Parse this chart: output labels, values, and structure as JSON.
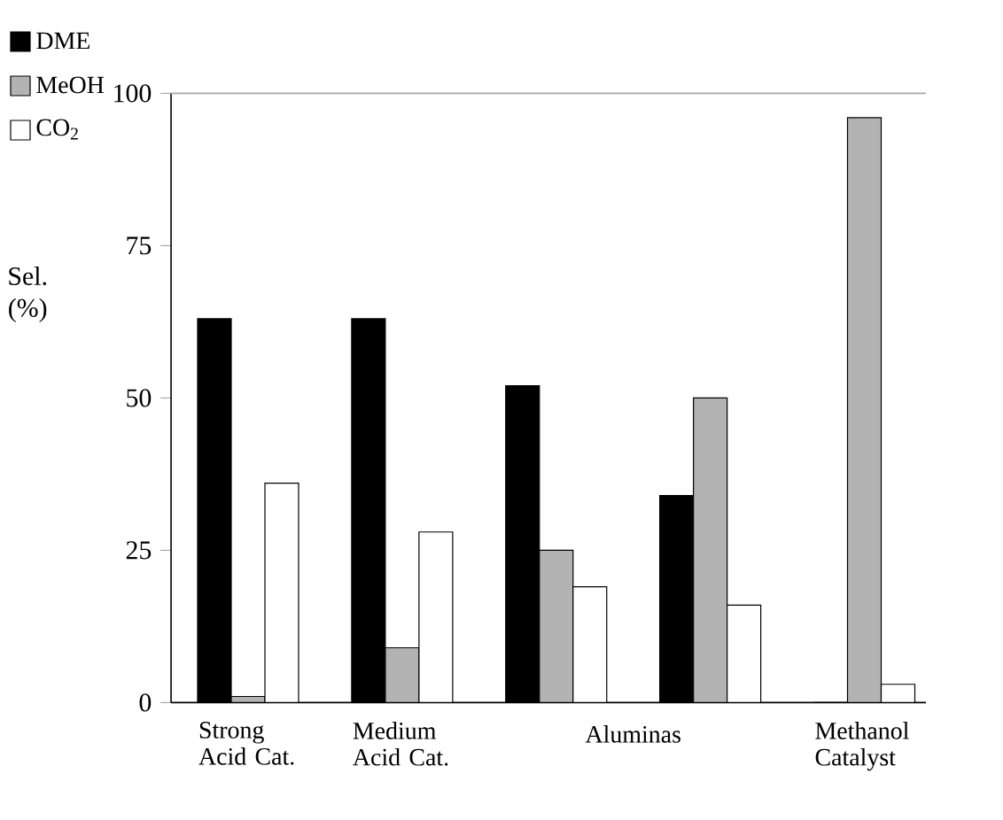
{
  "chart_data": {
    "type": "bar",
    "ylabel": "Sel. (%)",
    "categories": [
      "Strong Acid Cat.",
      "Medium Acid Cat.",
      null,
      null,
      "Methanol Catalyst"
    ],
    "series": [
      {
        "name": "DME",
        "color": "#000000",
        "values": [
          63,
          63,
          52,
          34,
          0
        ]
      },
      {
        "name": "MeOH",
        "color": "#b3b3b3",
        "values": [
          1,
          9,
          25,
          50,
          96
        ]
      },
      {
        "name": "CO$_{2}$",
        "color": "#ffffff",
        "values": [
          36,
          28,
          19,
          16,
          3
        ]
      }
    ],
    "ylim": [
      0,
      100
    ],
    "yticks": [
      0,
      25,
      50,
      75,
      100
    ],
    "annotations": [
      "Aluminas"
    ],
    "legend": "top left"
  }
}
